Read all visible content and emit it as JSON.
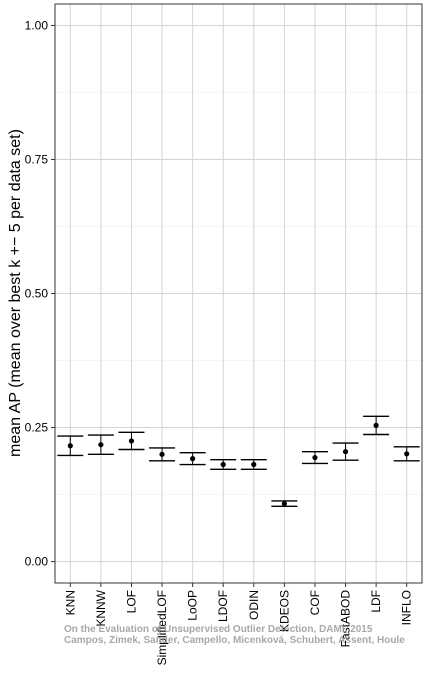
{
  "chart_data": {
    "type": "scatter",
    "title": "",
    "xlabel": "",
    "ylabel": "mean AP (mean over best k +− 5 per data set)",
    "ylim": [
      -0.04,
      1.04
    ],
    "yticks": [
      "0.00",
      "0.25",
      "0.50",
      "0.75",
      "1.00"
    ],
    "grid": true,
    "categories": [
      "KNN",
      "KNNW",
      "LOF",
      "SimplifiedLOF",
      "LoOP",
      "LDOF",
      "ODIN",
      "KDEOS",
      "COF",
      "FastABOD",
      "LDF",
      "INFLO"
    ],
    "series": [
      {
        "values": [
          0.216,
          0.218,
          0.225,
          0.2,
          0.192,
          0.181,
          0.181,
          0.108,
          0.194,
          0.205,
          0.254,
          0.201
        ],
        "lower": [
          0.198,
          0.2,
          0.209,
          0.188,
          0.181,
          0.172,
          0.172,
          0.103,
          0.183,
          0.189,
          0.237,
          0.188
        ],
        "upper": [
          0.234,
          0.236,
          0.241,
          0.212,
          0.203,
          0.19,
          0.19,
          0.113,
          0.205,
          0.221,
          0.271,
          0.214
        ]
      }
    ]
  },
  "watermark": {
    "line1": "On the Evaluation of Unsupervised Outlier Detection, DAMI, 2015",
    "line2": "Campos, Zimek, Sander, Campello, Micenková, Schubert, Assent, Houle"
  }
}
